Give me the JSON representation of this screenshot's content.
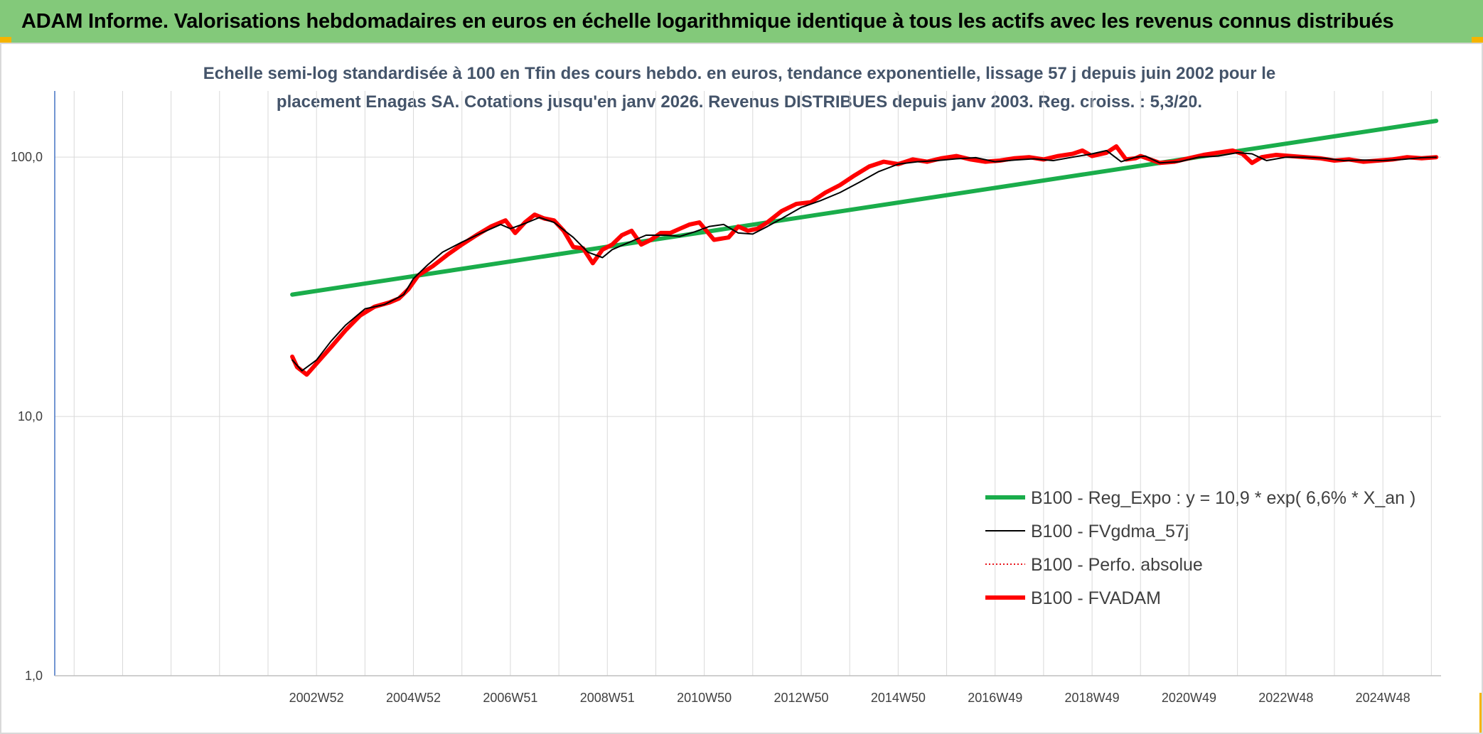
{
  "header": {
    "title": "ADAM Informe. Valorisations hebdomadaires en euros en échelle logarithmique identique à tous les actifs avec les revenus connus distribués"
  },
  "colors": {
    "banner": "#83c97a",
    "corner_accent": "#f5b400",
    "trend": "#1aad4b",
    "smooth": "#000000",
    "perfo": "#e8141b",
    "fvadam": "#ff0000",
    "grid": "#d9d9d9",
    "axis": "#4472c4"
  },
  "chart_data": {
    "type": "line",
    "subtitle_line1": "Echelle semi-log standardisée à 100 en Tfin des cours hebdo. en euros, tendance exponentielle, lissage 57 j depuis juin 2002 pour le",
    "subtitle_line2": "placement Enagas SA. Cotations jusqu'en janv 2026. Revenus DISTRIBUES depuis janv 2003. Reg. croiss. : 5,3/20.",
    "y_scale": "log",
    "ylim": [
      1,
      180
    ],
    "y_ticks": [
      "1,0",
      "10,0",
      "100,0"
    ],
    "y_tick_values": [
      1,
      10,
      100
    ],
    "xlim": [
      1997.6,
      2026.2
    ],
    "x_ticks": [
      "2002W52",
      "2004W52",
      "2006W51",
      "2008W51",
      "2010W50",
      "2012W50",
      "2014W50",
      "2016W49",
      "2018W49",
      "2020W49",
      "2022W48",
      "2024W48"
    ],
    "x_tick_years": [
      2003,
      2005,
      2007,
      2009,
      2011,
      2013,
      2015,
      2017,
      2019,
      2021,
      2023,
      2025
    ],
    "grid": true,
    "legend_position": "bottom-right",
    "series": [
      {
        "name": "B100 - Reg_Expo : y = 10,9 * exp( 6,6% *  X_an )",
        "style": "thick-solid",
        "color": "#1aad4b",
        "x": [
          2002.5,
          2026.1
        ],
        "y": [
          29.5,
          138
        ]
      },
      {
        "name": "B100 - FVgdma_57j",
        "style": "thin-solid",
        "color": "#000000",
        "x": [
          2002.5,
          2002.7,
          2003.0,
          2003.3,
          2003.6,
          2004.0,
          2004.4,
          2004.8,
          2005.0,
          2005.3,
          2005.6,
          2006.0,
          2006.4,
          2006.8,
          2007.0,
          2007.3,
          2007.6,
          2007.9,
          2008.3,
          2008.6,
          2008.9,
          2009.1,
          2009.4,
          2009.8,
          2010.2,
          2010.5,
          2010.8,
          2011.1,
          2011.4,
          2011.7,
          2012.0,
          2012.3,
          2012.6,
          2013.0,
          2013.4,
          2013.8,
          2014.2,
          2014.6,
          2015.0,
          2015.4,
          2015.8,
          2016.2,
          2016.6,
          2017.0,
          2017.4,
          2017.8,
          2018.2,
          2018.6,
          2019.0,
          2019.3,
          2019.6,
          2019.9,
          2020.1,
          2020.4,
          2020.8,
          2021.2,
          2021.6,
          2022.0,
          2022.3,
          2022.6,
          2023.0,
          2023.4,
          2023.8,
          2024.2,
          2024.6,
          2025.0,
          2025.4,
          2025.8,
          2026.1
        ],
        "y": [
          16.5,
          15.0,
          16.5,
          19.5,
          22.5,
          26.0,
          27.0,
          29.5,
          34.0,
          38.5,
          43.0,
          47.0,
          51.0,
          55.0,
          53.0,
          55.5,
          58.5,
          56.0,
          49.0,
          43.0,
          41.0,
          44.0,
          46.5,
          50.0,
          50.0,
          49.5,
          51.5,
          54.0,
          55.0,
          51.0,
          50.5,
          54.0,
          58.0,
          64.0,
          68.0,
          73.0,
          80.0,
          88.0,
          94.0,
          96.0,
          97.0,
          98.5,
          99.5,
          96.0,
          97.5,
          98.5,
          97.0,
          100.0,
          103.0,
          106.0,
          96.0,
          100.0,
          101.0,
          95.0,
          96.0,
          100.0,
          101.0,
          104.0,
          103.0,
          97.0,
          100.0,
          100.0,
          99.0,
          97.0,
          97.5,
          97.0,
          98.0,
          99.5,
          100.0
        ]
      },
      {
        "name": "B100 - Perfo. absolue",
        "style": "dotted",
        "color": "#e8141b",
        "x": [
          2002.5,
          2026.1
        ],
        "y": [
          16.5,
          100.0
        ]
      },
      {
        "name": "B100 - FVADAM",
        "style": "thick-solid",
        "color": "#ff0000",
        "x": [
          2002.5,
          2002.6,
          2002.8,
          2003.0,
          2003.3,
          2003.6,
          2003.9,
          2004.2,
          2004.5,
          2004.7,
          2004.9,
          2005.1,
          2005.4,
          2005.7,
          2006.0,
          2006.3,
          2006.6,
          2006.9,
          2007.1,
          2007.3,
          2007.5,
          2007.7,
          2007.9,
          2008.1,
          2008.3,
          2008.5,
          2008.7,
          2008.9,
          2009.1,
          2009.3,
          2009.5,
          2009.7,
          2009.9,
          2010.1,
          2010.3,
          2010.5,
          2010.7,
          2010.9,
          2011.2,
          2011.5,
          2011.7,
          2011.9,
          2012.1,
          2012.3,
          2012.6,
          2012.9,
          2013.2,
          2013.5,
          2013.8,
          2014.1,
          2014.4,
          2014.7,
          2015.0,
          2015.3,
          2015.6,
          2015.9,
          2016.2,
          2016.5,
          2016.8,
          2017.1,
          2017.4,
          2017.7,
          2018.0,
          2018.3,
          2018.6,
          2018.8,
          2019.0,
          2019.3,
          2019.5,
          2019.7,
          2019.9,
          2020.0,
          2020.2,
          2020.4,
          2020.7,
          2021.0,
          2021.3,
          2021.6,
          2021.9,
          2022.1,
          2022.3,
          2022.5,
          2022.8,
          2023.1,
          2023.4,
          2023.7,
          2024.0,
          2024.3,
          2024.6,
          2024.9,
          2025.2,
          2025.5,
          2025.8,
          2026.1
        ],
        "y": [
          17.0,
          15.5,
          14.5,
          16.0,
          18.5,
          21.5,
          24.5,
          26.5,
          27.5,
          28.5,
          31.0,
          35.0,
          38.0,
          42.0,
          46.0,
          50.0,
          54.0,
          57.0,
          51.0,
          56.0,
          60.0,
          58.0,
          57.0,
          52.0,
          45.0,
          44.5,
          39.0,
          44.0,
          46.0,
          50.0,
          52.0,
          46.0,
          48.0,
          51.0,
          51.0,
          53.0,
          55.0,
          56.0,
          48.0,
          49.0,
          54.0,
          52.0,
          53.0,
          56.0,
          62.0,
          66.0,
          67.0,
          73.0,
          78.0,
          85.0,
          92.0,
          96.0,
          94.0,
          98.0,
          96.0,
          99.0,
          101.0,
          98.0,
          96.0,
          97.0,
          99.0,
          100.0,
          98.0,
          101.0,
          103.0,
          106.0,
          101.0,
          104.0,
          110.0,
          98.0,
          99.0,
          101.0,
          98.0,
          95.0,
          96.0,
          99.0,
          102.0,
          104.0,
          106.0,
          103.0,
          95.0,
          100.0,
          102.0,
          101.0,
          100.0,
          99.0,
          97.0,
          98.0,
          96.0,
          97.0,
          98.0,
          100.0,
          99.0,
          100.0
        ]
      }
    ]
  }
}
